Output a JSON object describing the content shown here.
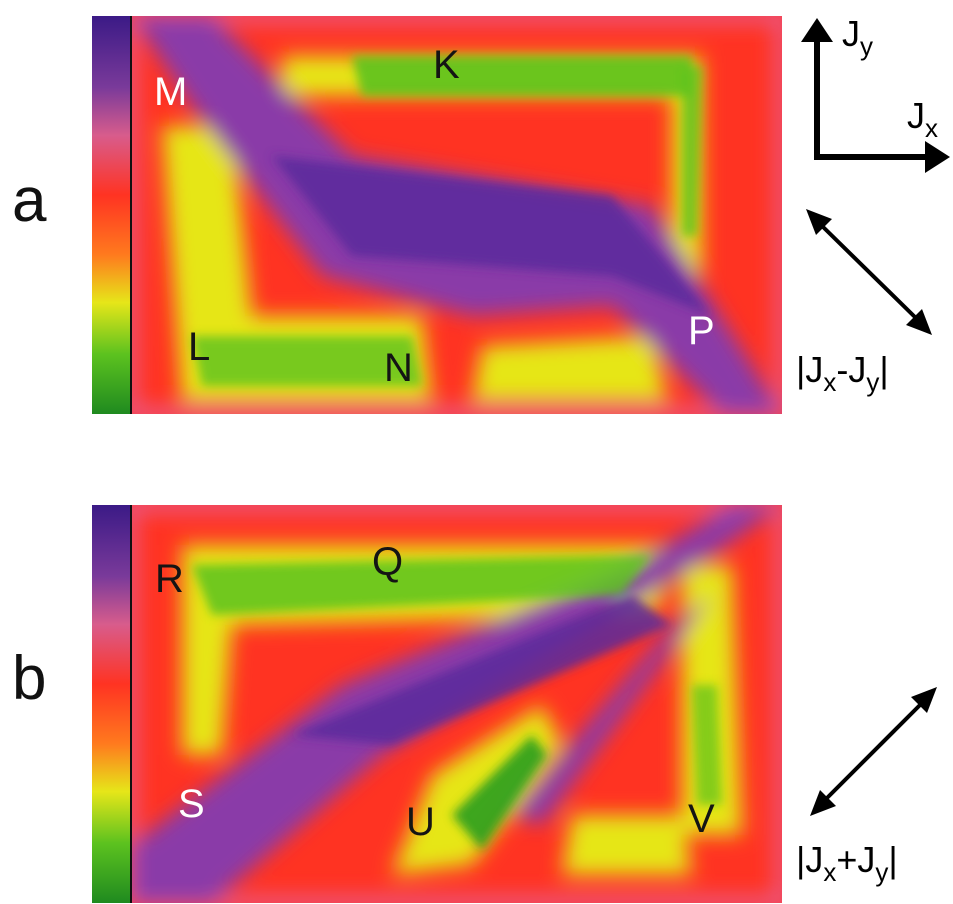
{
  "figure": {
    "panels": [
      {
        "id": "a",
        "letter": "a",
        "labels": {
          "M": "M",
          "K": "K",
          "L": "L",
          "N": "N",
          "P": "P"
        },
        "direction_label": {
          "base": "|J",
          "sub1": "x",
          "op": "-J",
          "sub2": "y",
          "end": "|"
        }
      },
      {
        "id": "b",
        "letter": "b",
        "labels": {
          "R": "R",
          "Q": "Q",
          "S": "S",
          "U": "U",
          "V": "V"
        },
        "direction_label": {
          "base": "|J",
          "sub1": "x",
          "op": "+J",
          "sub2": "y",
          "end": "|"
        }
      }
    ],
    "axes": {
      "y_label": {
        "base": "J",
        "sub": "y"
      },
      "x_label": {
        "base": "J",
        "sub": "x"
      }
    },
    "colorscale": [
      "#1f8a1f",
      "#5cc21f",
      "#e6e619",
      "#ff9a1e",
      "#ff3322",
      "#ff3b55",
      "#d85c8c",
      "#9a4aa4",
      "#5a2a9c",
      "#3b1a86"
    ]
  }
}
